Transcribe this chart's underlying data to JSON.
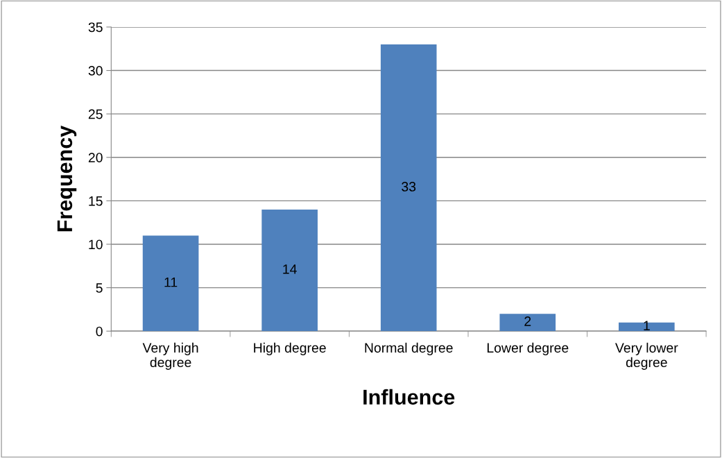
{
  "chart_data": {
    "type": "bar",
    "xlabel": "Influence",
    "ylabel": "Frequency",
    "categories": [
      "Very high degree",
      "High degree",
      "Normal degree",
      "Lower degree",
      "Very lower degree"
    ],
    "values": [
      11,
      14,
      33,
      2,
      1
    ],
    "color": "#4f81bd",
    "ylim": [
      0,
      35
    ],
    "yticks": [
      0,
      5,
      10,
      15,
      20,
      25,
      30,
      35
    ],
    "grid": "y",
    "data_labels": true
  }
}
